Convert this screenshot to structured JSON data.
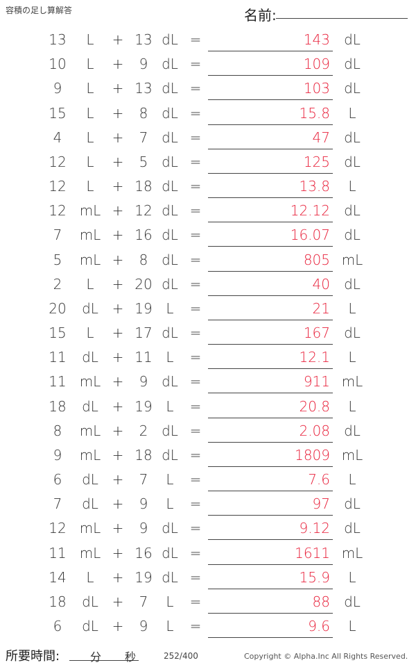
{
  "header": {
    "title": "容積の足し算解答",
    "name_label": "名前:"
  },
  "operator": "+",
  "equals": "=",
  "problems": [
    {
      "a": "13",
      "ua": "L",
      "b": "13",
      "ub": "dL",
      "answer": "143",
      "unit": "dL"
    },
    {
      "a": "10",
      "ua": "L",
      "b": "9",
      "ub": "dL",
      "answer": "109",
      "unit": "dL"
    },
    {
      "a": "9",
      "ua": "L",
      "b": "13",
      "ub": "dL",
      "answer": "103",
      "unit": "dL"
    },
    {
      "a": "15",
      "ua": "L",
      "b": "8",
      "ub": "dL",
      "answer": "15.8",
      "unit": "L"
    },
    {
      "a": "4",
      "ua": "L",
      "b": "7",
      "ub": "dL",
      "answer": "47",
      "unit": "dL"
    },
    {
      "a": "12",
      "ua": "L",
      "b": "5",
      "ub": "dL",
      "answer": "125",
      "unit": "dL"
    },
    {
      "a": "12",
      "ua": "L",
      "b": "18",
      "ub": "dL",
      "answer": "13.8",
      "unit": "L"
    },
    {
      "a": "12",
      "ua": "mL",
      "b": "12",
      "ub": "dL",
      "answer": "12.12",
      "unit": "dL"
    },
    {
      "a": "7",
      "ua": "mL",
      "b": "16",
      "ub": "dL",
      "answer": "16.07",
      "unit": "dL"
    },
    {
      "a": "5",
      "ua": "mL",
      "b": "8",
      "ub": "dL",
      "answer": "805",
      "unit": "mL"
    },
    {
      "a": "2",
      "ua": "L",
      "b": "20",
      "ub": "dL",
      "answer": "40",
      "unit": "dL"
    },
    {
      "a": "20",
      "ua": "dL",
      "b": "19",
      "ub": "L",
      "answer": "21",
      "unit": "L"
    },
    {
      "a": "15",
      "ua": "L",
      "b": "17",
      "ub": "dL",
      "answer": "167",
      "unit": "dL"
    },
    {
      "a": "11",
      "ua": "dL",
      "b": "11",
      "ub": "L",
      "answer": "12.1",
      "unit": "L"
    },
    {
      "a": "11",
      "ua": "mL",
      "b": "9",
      "ub": "dL",
      "answer": "911",
      "unit": "mL"
    },
    {
      "a": "18",
      "ua": "dL",
      "b": "19",
      "ub": "L",
      "answer": "20.8",
      "unit": "L"
    },
    {
      "a": "8",
      "ua": "mL",
      "b": "2",
      "ub": "dL",
      "answer": "2.08",
      "unit": "dL"
    },
    {
      "a": "9",
      "ua": "mL",
      "b": "18",
      "ub": "dL",
      "answer": "1809",
      "unit": "mL"
    },
    {
      "a": "6",
      "ua": "dL",
      "b": "7",
      "ub": "L",
      "answer": "7.6",
      "unit": "L"
    },
    {
      "a": "7",
      "ua": "dL",
      "b": "9",
      "ub": "L",
      "answer": "97",
      "unit": "dL"
    },
    {
      "a": "12",
      "ua": "mL",
      "b": "9",
      "ub": "dL",
      "answer": "9.12",
      "unit": "dL"
    },
    {
      "a": "11",
      "ua": "mL",
      "b": "16",
      "ub": "dL",
      "answer": "1611",
      "unit": "mL"
    },
    {
      "a": "14",
      "ua": "L",
      "b": "19",
      "ub": "dL",
      "answer": "15.9",
      "unit": "L"
    },
    {
      "a": "18",
      "ua": "dL",
      "b": "7",
      "ub": "L",
      "answer": "88",
      "unit": "dL"
    },
    {
      "a": "6",
      "ua": "dL",
      "b": "9",
      "ub": "L",
      "answer": "9.6",
      "unit": "L"
    }
  ],
  "footer": {
    "time_label": "所要時間:",
    "minutes": "分",
    "seconds": "秒",
    "page": "252/400",
    "copyright": "Copyright © Alpha.Inc All Rights Reserved."
  },
  "colors": {
    "answer": "#e8203a"
  }
}
